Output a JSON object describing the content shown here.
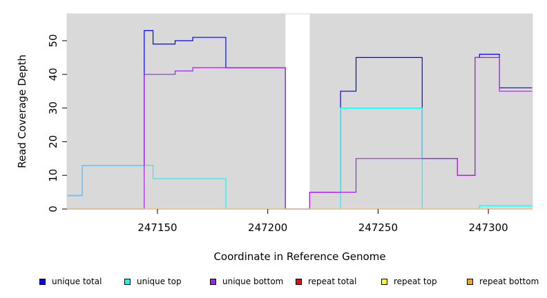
{
  "chart_data": {
    "type": "line",
    "title": "",
    "xlabel": "Coordinate in Reference Genome",
    "ylabel": "Read Coverage Depth",
    "xlim": [
      247109,
      247320
    ],
    "ylim": [
      0,
      58
    ],
    "xticks": [
      247150,
      247200,
      247250,
      247300
    ],
    "yticks": [
      0,
      10,
      20,
      30,
      40,
      50
    ],
    "gap": [
      247208,
      247219
    ],
    "colors": {
      "panel_background": "#d9d9d9",
      "gap_background": "#ffffff"
    },
    "series": [
      {
        "name": "unique total",
        "color": "#0000ff",
        "points": [
          [
            247109,
            4
          ],
          [
            247116,
            4
          ],
          [
            247116,
            13
          ],
          [
            247144,
            13
          ],
          [
            247144,
            53
          ],
          [
            247148,
            53
          ],
          [
            247148,
            49
          ],
          [
            247158,
            49
          ],
          [
            247158,
            50
          ],
          [
            247166,
            50
          ],
          [
            247166,
            51
          ],
          [
            247181,
            51
          ],
          [
            247181,
            42
          ],
          [
            247208,
            42
          ],
          [
            247208,
            0
          ],
          [
            247219,
            0
          ],
          [
            247219,
            5
          ],
          [
            247233,
            5
          ],
          [
            247233,
            35
          ],
          [
            247240,
            35
          ],
          [
            247240,
            45
          ],
          [
            247270,
            45
          ],
          [
            247270,
            15
          ],
          [
            247286,
            15
          ],
          [
            247286,
            10
          ],
          [
            247294,
            10
          ],
          [
            247294,
            45
          ],
          [
            247296,
            45
          ],
          [
            247296,
            46
          ],
          [
            247305,
            46
          ],
          [
            247305,
            36
          ],
          [
            247320,
            36
          ]
        ]
      },
      {
        "name": "unique top",
        "color": "#00ffff",
        "points": [
          [
            247109,
            4
          ],
          [
            247116,
            4
          ],
          [
            247116,
            13
          ],
          [
            247148,
            13
          ],
          [
            247148,
            9
          ],
          [
            247181,
            9
          ],
          [
            247181,
            0
          ],
          [
            247233,
            0
          ],
          [
            247233,
            30
          ],
          [
            247270,
            30
          ],
          [
            247270,
            0
          ],
          [
            247296,
            0
          ],
          [
            247296,
            1
          ],
          [
            247320,
            1
          ]
        ]
      },
      {
        "name": "unique bottom",
        "color": "#a020f0",
        "points": [
          [
            247109,
            0
          ],
          [
            247144,
            0
          ],
          [
            247144,
            40
          ],
          [
            247158,
            40
          ],
          [
            247158,
            41
          ],
          [
            247166,
            41
          ],
          [
            247166,
            42
          ],
          [
            247208,
            42
          ],
          [
            247208,
            0
          ],
          [
            247219,
            0
          ],
          [
            247219,
            5
          ],
          [
            247240,
            5
          ],
          [
            247240,
            15
          ],
          [
            247286,
            15
          ],
          [
            247286,
            10
          ],
          [
            247294,
            10
          ],
          [
            247294,
            45
          ],
          [
            247305,
            45
          ],
          [
            247305,
            35
          ],
          [
            247320,
            35
          ]
        ]
      },
      {
        "name": "repeat total",
        "color": "#ff0000",
        "points": [
          [
            247109,
            0
          ],
          [
            247320,
            0
          ]
        ]
      },
      {
        "name": "repeat top",
        "color": "#ffff00",
        "points": [
          [
            247109,
            0
          ],
          [
            247320,
            0
          ]
        ]
      },
      {
        "name": "repeat bottom",
        "color": "#ffa500",
        "points": [
          [
            247109,
            0
          ],
          [
            247320,
            0
          ]
        ]
      }
    ],
    "legend_position": "bottom"
  }
}
